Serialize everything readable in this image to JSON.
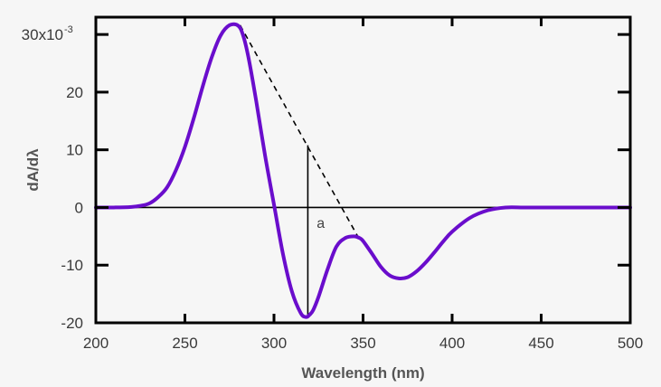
{
  "chart_data": {
    "type": "line",
    "title": "",
    "xlabel": "Wavelength (nm)",
    "ylabel": "dA/dλ",
    "y_top_label": "30x10",
    "y_top_label_exponent": "-3",
    "xlim": [
      200,
      500
    ],
    "ylim": [
      -20,
      33
    ],
    "x_ticks": [
      200,
      250,
      300,
      350,
      400,
      450,
      500
    ],
    "x_tick_labels": [
      "200",
      "250",
      "300",
      "350",
      "400",
      "450",
      "500"
    ],
    "y_ticks": [
      -20,
      -10,
      0,
      10,
      20,
      30
    ],
    "y_tick_labels": [
      "-20",
      "-10",
      "0",
      "10",
      "20",
      "30x10"
    ],
    "grid": false,
    "zero_line": true,
    "series": [
      {
        "name": "",
        "color": "#6a0dcc",
        "x": [
          200,
          210,
          220,
          225,
          230,
          235,
          240,
          245,
          250,
          255,
          260,
          265,
          270,
          275,
          280,
          283,
          286,
          290,
          295,
          300,
          305,
          310,
          315,
          318,
          320,
          322,
          325,
          330,
          335,
          340,
          345,
          348,
          350,
          355,
          360,
          365,
          370,
          375,
          380,
          385,
          390,
          395,
          400,
          410,
          420,
          430,
          440,
          450,
          460,
          480,
          500
        ],
        "y": [
          0,
          0,
          0.1,
          0.3,
          0.7,
          1.8,
          3.5,
          6.5,
          10.5,
          15.5,
          21,
          26,
          29.8,
          31.6,
          31.5,
          29.5,
          25.5,
          18.5,
          9,
          0.5,
          -8,
          -14.5,
          -18.3,
          -19,
          -18.6,
          -17.8,
          -15.5,
          -10.8,
          -6.8,
          -5.3,
          -5,
          -5.3,
          -5.8,
          -8,
          -10.3,
          -11.8,
          -12.3,
          -12.1,
          -11.1,
          -9.6,
          -7.8,
          -5.9,
          -4.2,
          -1.8,
          -0.5,
          0,
          0,
          0,
          0,
          0,
          0
        ]
      }
    ],
    "annotations": [
      {
        "type": "dashed-line",
        "from": [
          281,
          31.6
        ],
        "to": [
          347,
          -5
        ]
      },
      {
        "type": "vertical-line",
        "x": 319,
        "from_y": -19,
        "to_y": 10.8
      },
      {
        "type": "label",
        "text": "a",
        "x": 324,
        "y": -3.5
      }
    ]
  }
}
